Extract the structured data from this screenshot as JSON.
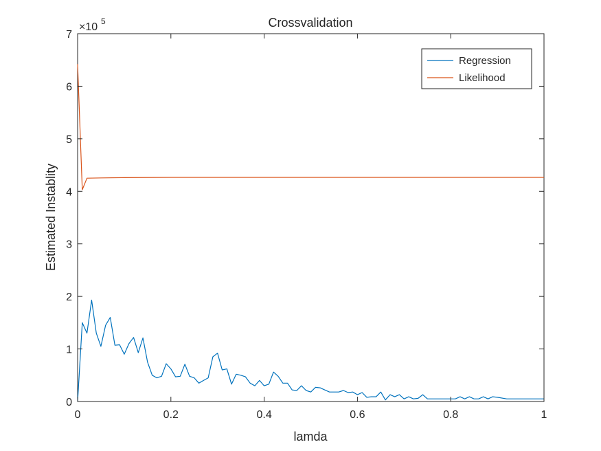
{
  "chart_data": {
    "type": "line",
    "title": "Crossvalidation",
    "xlabel": "lamda",
    "ylabel": "Estimated Instablity",
    "xlim": [
      0,
      1
    ],
    "ylim": [
      0,
      700000
    ],
    "x_ticks": [
      0,
      0.2,
      0.4,
      0.6,
      0.8,
      1
    ],
    "x_tick_labels": [
      "0",
      "0.2",
      "0.4",
      "0.6",
      "0.8",
      "1"
    ],
    "y_ticks": [
      0,
      100000,
      200000,
      300000,
      400000,
      500000,
      600000,
      700000
    ],
    "y_tick_labels": [
      "0",
      "1",
      "2",
      "3",
      "4",
      "5",
      "6",
      "7"
    ],
    "y_exponent_label": "×10",
    "y_exponent_power": "5",
    "grid": false,
    "legend_position": "top-right",
    "series": [
      {
        "name": "Regression",
        "color": "#0072BD",
        "x": [
          0,
          0.01,
          0.02,
          0.03,
          0.04,
          0.05,
          0.06,
          0.07,
          0.08,
          0.09,
          0.1,
          0.11,
          0.12,
          0.13,
          0.14,
          0.15,
          0.16,
          0.17,
          0.18,
          0.19,
          0.2,
          0.21,
          0.22,
          0.23,
          0.24,
          0.25,
          0.26,
          0.27,
          0.28,
          0.29,
          0.3,
          0.31,
          0.32,
          0.33,
          0.34,
          0.35,
          0.36,
          0.37,
          0.38,
          0.39,
          0.4,
          0.41,
          0.42,
          0.43,
          0.44,
          0.45,
          0.46,
          0.47,
          0.48,
          0.49,
          0.5,
          0.51,
          0.52,
          0.53,
          0.54,
          0.55,
          0.56,
          0.57,
          0.58,
          0.59,
          0.6,
          0.61,
          0.62,
          0.63,
          0.64,
          0.65,
          0.66,
          0.67,
          0.68,
          0.69,
          0.7,
          0.71,
          0.72,
          0.73,
          0.74,
          0.75,
          0.76,
          0.77,
          0.78,
          0.79,
          0.8,
          0.81,
          0.82,
          0.83,
          0.84,
          0.85,
          0.86,
          0.87,
          0.88,
          0.89,
          0.9,
          0.92,
          0.95,
          1.0
        ],
        "values": [
          0,
          150000,
          130000,
          193000,
          130000,
          105000,
          145000,
          160000,
          107000,
          108000,
          90000,
          110000,
          122000,
          93000,
          121000,
          75000,
          50000,
          45000,
          48000,
          72000,
          62000,
          47000,
          48000,
          71000,
          48000,
          45000,
          35000,
          40000,
          45000,
          85000,
          92000,
          60000,
          62000,
          33000,
          52000,
          50000,
          47000,
          35000,
          30000,
          40000,
          30000,
          33000,
          56000,
          48000,
          35000,
          35000,
          22000,
          21000,
          30000,
          21000,
          18000,
          27000,
          26000,
          22000,
          18000,
          18000,
          18000,
          21000,
          17000,
          18000,
          13000,
          17000,
          8000,
          9000,
          9000,
          18000,
          3000,
          13000,
          9000,
          13000,
          5000,
          9000,
          5000,
          6000,
          13000,
          5000,
          5000,
          5000,
          5000,
          5000,
          5000,
          5000,
          9000,
          5000,
          9000,
          5000,
          5000,
          9000,
          5000,
          9000,
          8000,
          5000,
          5000,
          5000
        ]
      },
      {
        "name": "Likelihood",
        "color": "#D95319",
        "x": [
          0,
          0.01,
          0.02,
          0.05,
          0.1,
          0.2,
          0.5,
          1.0
        ],
        "values": [
          642000,
          403000,
          425000,
          425500,
          426000,
          426500,
          426500,
          426500
        ]
      }
    ]
  }
}
